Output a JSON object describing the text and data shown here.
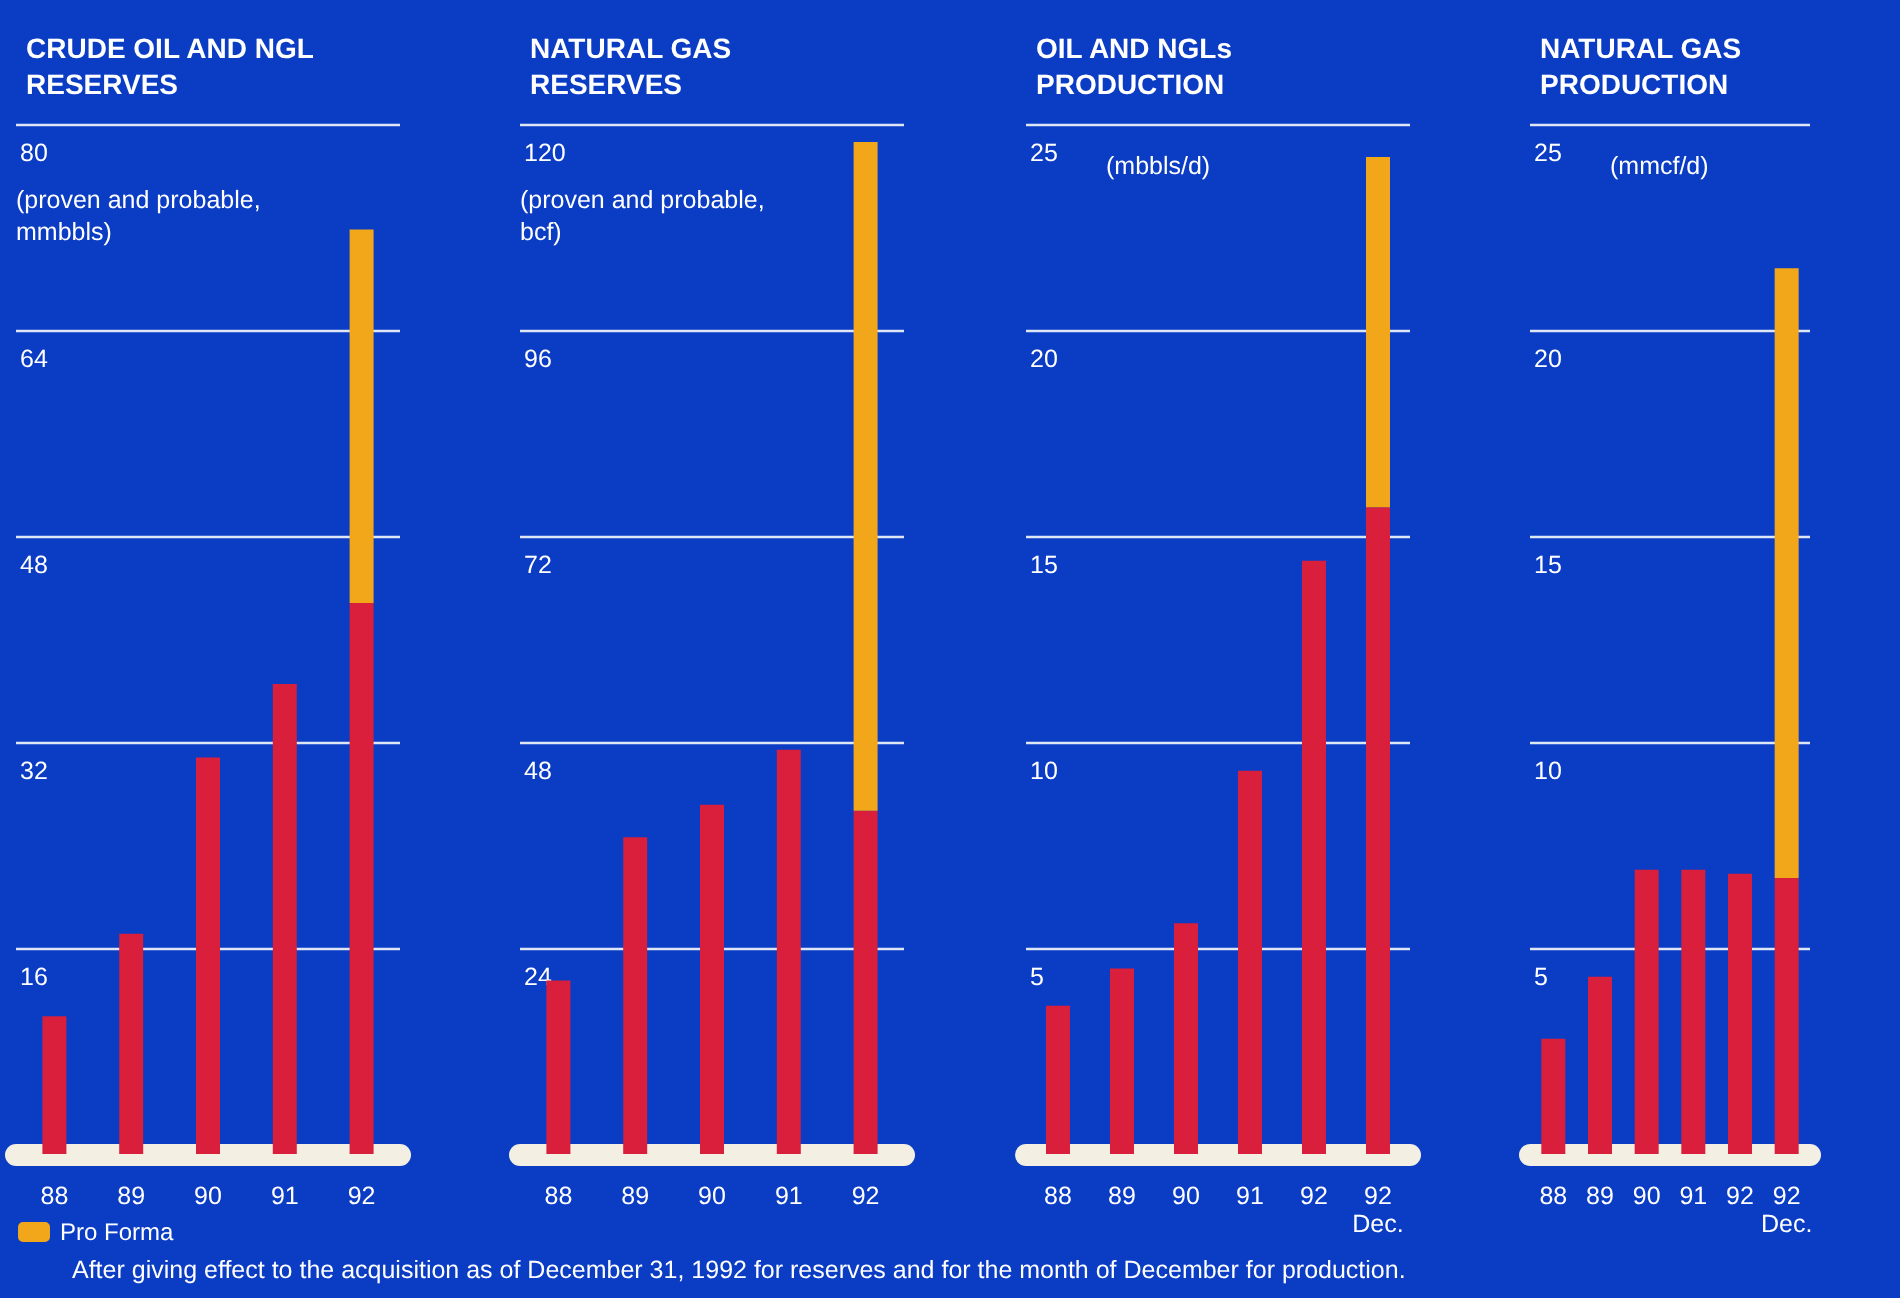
{
  "chart_data": [
    {
      "type": "bar",
      "title": "CRUDE OIL AND NGL RESERVES",
      "ylabel": "(proven and probable, mmbbls)",
      "categories": [
        "88",
        "89",
        "90",
        "91",
        "92"
      ],
      "stacked": true,
      "grid": "y",
      "ylim": [
        0,
        80
      ],
      "yticks": [
        16,
        32,
        48,
        64,
        80
      ],
      "legend": "bottom left",
      "annotations": [
        "After giving effect to the acquisition as of December 31, 1992 for reserves and for the month of December for production."
      ],
      "series": [
        {
          "color": "#d91f3c",
          "values": [
            10.7,
            17.1,
            30.8,
            36.5,
            42.8
          ]
        },
        {
          "name": "Pro Forma",
          "color": "#f2a71b",
          "values": [
            null,
            null,
            null,
            null,
            29
          ]
        }
      ]
    },
    {
      "type": "bar",
      "title": "NATURAL GAS RESERVES",
      "ylabel": "(proven and probable, bcf)",
      "categories": [
        "88",
        "89",
        "90",
        "91",
        "92"
      ],
      "stacked": true,
      "grid": "y",
      "ylim": [
        0,
        120
      ],
      "yticks": [
        24,
        48,
        72,
        96,
        120
      ],
      "series": [
        {
          "color": "#d91f3c",
          "values": [
            20.2,
            36.9,
            40.7,
            47.1,
            40.0
          ]
        },
        {
          "color": "#f2a71b",
          "values": [
            null,
            null,
            null,
            null,
            77.9
          ]
        }
      ]
    },
    {
      "type": "bar",
      "title": "OIL AND NGLs PRODUCTION",
      "ylabel": "(mbbls/d)",
      "categories": [
        "88",
        "89",
        "90",
        "91",
        "92",
        "92\nDec."
      ],
      "stacked": true,
      "grid": "y",
      "ylim": [
        0,
        25
      ],
      "yticks": [
        5,
        10,
        15,
        20,
        25
      ],
      "series": [
        {
          "color": "#d91f3c",
          "values": [
            3.6,
            4.5,
            5.6,
            9.3,
            14.4,
            15.7
          ]
        },
        {
          "color": "#f2a71b",
          "values": [
            null,
            null,
            null,
            null,
            null,
            8.5
          ]
        }
      ]
    },
    {
      "type": "bar",
      "title": "NATURAL GAS PRODUCTION",
      "ylabel": "(mmcf/d)",
      "categories": [
        "88",
        "89",
        "90",
        "91",
        "92",
        "92\nDec."
      ],
      "stacked": true,
      "grid": "y",
      "ylim": [
        0,
        25
      ],
      "yticks": [
        5,
        10,
        15,
        20,
        25
      ],
      "series": [
        {
          "color": "#d91f3c",
          "values": [
            2.8,
            4.3,
            6.9,
            6.9,
            6.8,
            6.7
          ]
        },
        {
          "color": "#f2a71b",
          "values": [
            null,
            null,
            null,
            null,
            null,
            14.8
          ]
        }
      ]
    }
  ]
}
